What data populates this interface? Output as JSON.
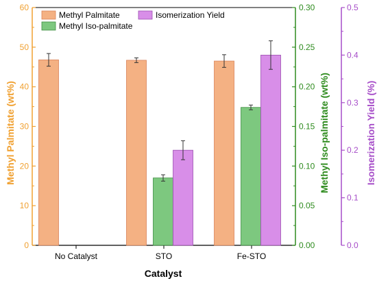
{
  "chart_data": {
    "type": "bar",
    "xlabel": "Catalyst",
    "categories": [
      "No Catalyst",
      "STO",
      "Fe-STO"
    ],
    "legend_position": "top-left",
    "grid": false,
    "series": [
      {
        "name": "Methyl Palmitate",
        "axis": "left",
        "color": "#f4b183",
        "edge": "#d9835a",
        "values": [
          46.8,
          46.7,
          46.5
        ],
        "errors": [
          1.6,
          0.6,
          1.6
        ]
      },
      {
        "name": "Methyl Iso-palmitate",
        "axis": "right1",
        "color": "#7dc87f",
        "edge": "#3e8e41",
        "values": [
          null,
          0.085,
          0.174
        ],
        "errors": [
          null,
          0.004,
          0.003
        ]
      },
      {
        "name": "Isomerization Yield",
        "axis": "right2",
        "color": "#d88ee8",
        "edge": "#9b4fb0",
        "values": [
          null,
          0.2,
          0.4
        ],
        "errors": [
          null,
          0.02,
          0.03
        ]
      }
    ],
    "axes": {
      "left": {
        "label": "Methyl Palmitate (wt%)",
        "color": "#f0a030",
        "ylim": [
          0,
          60
        ],
        "ticks": [
          "0",
          "10",
          "20",
          "30",
          "40",
          "50",
          "60"
        ]
      },
      "right1": {
        "label": "Methyl Iso-palmitate (wt%)",
        "color": "#2e8b1e",
        "ylim": [
          0,
          0.3
        ],
        "ticks": [
          "0.00",
          "0.05",
          "0.10",
          "0.15",
          "0.20",
          "0.25",
          "0.30"
        ]
      },
      "right2": {
        "label": "Isomerization Yield (%)",
        "color": "#a64dc8",
        "ylim": [
          0,
          0.5
        ],
        "ticks": [
          "0.0",
          "0.1",
          "0.2",
          "0.3",
          "0.4",
          "0.5"
        ]
      }
    }
  }
}
